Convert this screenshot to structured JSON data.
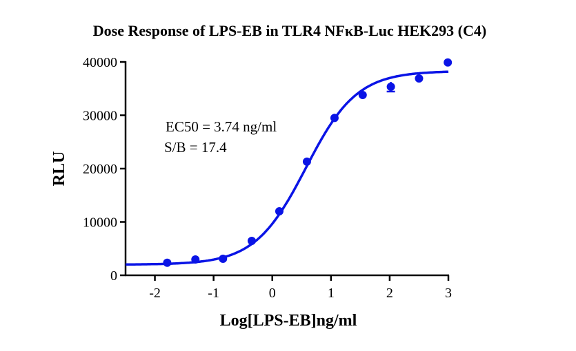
{
  "chart_data": {
    "type": "scatter",
    "title": "Dose Response of LPS-EB in TLR4 NFκB-Luc HEK293 (C4)",
    "xlabel": "Log[LPS-EB]ng/ml",
    "ylabel": "RLU",
    "xlim": [
      -2.5,
      3
    ],
    "ylim": [
      0,
      40000
    ],
    "xticks": [
      -2,
      -1,
      0,
      1,
      2,
      3
    ],
    "yticks": [
      0,
      10000,
      20000,
      30000,
      40000
    ],
    "grid": false,
    "color": "#0a14e6",
    "annotations": [
      "EC50 = 3.74 ng/ml",
      "S/B = 17.4"
    ],
    "points": [
      {
        "x": -1.79,
        "y": 2350
      },
      {
        "x": -1.31,
        "y": 2970
      },
      {
        "x": -0.84,
        "y": 3100
      },
      {
        "x": -0.35,
        "y": 6450
      },
      {
        "x": 0.12,
        "y": 12000
      },
      {
        "x": 0.59,
        "y": 21300
      },
      {
        "x": 1.06,
        "y": 29500
      },
      {
        "x": 1.54,
        "y": 33800
      },
      {
        "x": 2.02,
        "y": 35350,
        "err": 900
      },
      {
        "x": 2.5,
        "y": 36900
      },
      {
        "x": 2.99,
        "y": 39900
      }
    ],
    "fit": {
      "model": "4PL",
      "bottom": 2000,
      "top": 38300,
      "logEC50": 0.573,
      "hill": 1.0
    }
  }
}
